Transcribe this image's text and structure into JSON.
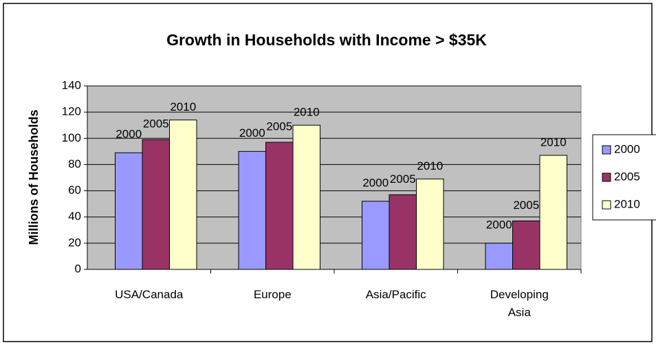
{
  "chart_data": {
    "type": "bar",
    "title": "Growth in Households with Income > $35K",
    "y_label": "Millions of Households",
    "categories": [
      "USA/Canada",
      "Europe",
      "Asia/Pacific",
      "Developing Asia"
    ],
    "series": [
      {
        "name": "2000",
        "color": "#9999ff",
        "values": [
          89,
          90,
          52,
          20
        ]
      },
      {
        "name": "2005",
        "color": "#993366",
        "values": [
          99,
          97,
          57,
          37
        ]
      },
      {
        "name": "2010",
        "color": "#ffffcc",
        "values": [
          114,
          110,
          69,
          87
        ]
      }
    ],
    "ylim": [
      0,
      140
    ],
    "yticks": [
      0,
      20,
      40,
      60,
      80,
      100,
      120,
      140
    ],
    "grid": true,
    "legend": "right"
  }
}
